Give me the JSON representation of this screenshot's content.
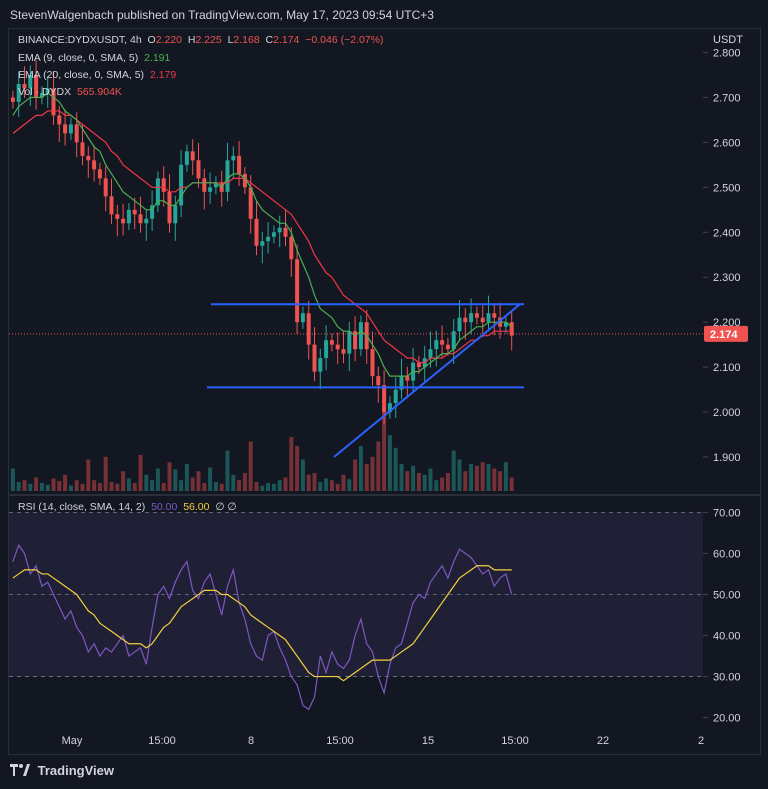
{
  "header": {
    "attribution": "StevenWalgenbach published on TradingView.com, May 17, 2023 09:54 UTC+3"
  },
  "legend": {
    "symbol": "BINANCE:DYDXUSDT, 4h",
    "o_label": "O",
    "o": "2.220",
    "h_label": "H",
    "h": "2.225",
    "l_label": "L",
    "l": "2.168",
    "c_label": "C",
    "c": "2.174",
    "change": "−0.046 (−2.07%)",
    "ema9_label": "EMA (9, close, 0, SMA, 5)",
    "ema9": "2.191",
    "ema20_label": "EMA (20, close, 0, SMA, 5)",
    "ema20": "2.179",
    "vol_label": "Vol · DYDX",
    "vol": "565.904K",
    "rsi_label": "RSI (14, close, SMA, 14, 2)",
    "rsi_a": "50.00",
    "rsi_b": "56.00",
    "rsi_c": "∅ ∅"
  },
  "colors": {
    "up": "#26a69a",
    "down": "#ef5350",
    "ema9": "#4caf50",
    "ema20": "#f23645",
    "rsi": "#7e57c2",
    "rsi_ma": "#f4d03f",
    "pattern": "#2962ff"
  },
  "footer": {
    "brand": "TradingView"
  },
  "chart_data": [
    {
      "type": "candlestick",
      "y_axis_label": "USDT",
      "yticks": [
        "2.800",
        "2.700",
        "2.600",
        "2.500",
        "2.400",
        "2.300",
        "2.200",
        "2.100",
        "2.000",
        "1.900"
      ],
      "ylim": [
        1.82,
        2.85
      ],
      "xticks": [
        "May",
        "15:00",
        "8",
        "15:00",
        "15",
        "15:00",
        "22",
        "2"
      ],
      "last_price": "2.174",
      "closes": [
        2.69,
        2.73,
        2.72,
        2.75,
        2.7,
        2.71,
        2.72,
        2.66,
        2.64,
        2.62,
        2.64,
        2.6,
        2.57,
        2.56,
        2.54,
        2.52,
        2.48,
        2.44,
        2.43,
        2.42,
        2.45,
        2.44,
        2.42,
        2.43,
        2.46,
        2.52,
        2.49,
        2.42,
        2.46,
        2.55,
        2.58,
        2.56,
        2.52,
        2.49,
        2.5,
        2.51,
        2.49,
        2.56,
        2.57,
        2.53,
        2.5,
        2.43,
        2.37,
        2.38,
        2.39,
        2.4,
        2.41,
        2.39,
        2.34,
        2.2,
        2.22,
        2.15,
        2.09,
        2.12,
        2.16,
        2.15,
        2.14,
        2.13,
        2.18,
        2.14,
        2.2,
        2.14,
        2.08,
        2.06,
        2.0,
        2.02,
        2.05,
        2.08,
        2.07,
        2.11,
        2.1,
        2.12,
        2.14,
        2.16,
        2.15,
        2.14,
        2.18,
        2.21,
        2.2,
        2.22,
        2.21,
        2.2,
        2.22,
        2.21,
        2.19,
        2.2,
        2.17
      ],
      "ema9": [
        2.66,
        2.68,
        2.69,
        2.7,
        2.7,
        2.7,
        2.71,
        2.7,
        2.69,
        2.67,
        2.66,
        2.65,
        2.63,
        2.61,
        2.59,
        2.58,
        2.55,
        2.53,
        2.51,
        2.49,
        2.48,
        2.47,
        2.46,
        2.45,
        2.45,
        2.47,
        2.47,
        2.46,
        2.46,
        2.48,
        2.5,
        2.51,
        2.51,
        2.51,
        2.51,
        2.51,
        2.5,
        2.52,
        2.53,
        2.53,
        2.52,
        2.5,
        2.47,
        2.45,
        2.44,
        2.43,
        2.42,
        2.42,
        2.4,
        2.36,
        2.33,
        2.3,
        2.26,
        2.23,
        2.22,
        2.21,
        2.19,
        2.18,
        2.18,
        2.17,
        2.18,
        2.17,
        2.15,
        2.13,
        2.1,
        2.08,
        2.08,
        2.08,
        2.08,
        2.09,
        2.09,
        2.1,
        2.11,
        2.12,
        2.13,
        2.13,
        2.14,
        2.16,
        2.17,
        2.18,
        2.19,
        2.19,
        2.2,
        2.2,
        2.2,
        2.2,
        2.19
      ],
      "ema20": [
        2.62,
        2.63,
        2.64,
        2.65,
        2.66,
        2.66,
        2.67,
        2.67,
        2.67,
        2.66,
        2.66,
        2.65,
        2.64,
        2.63,
        2.62,
        2.61,
        2.6,
        2.58,
        2.57,
        2.55,
        2.54,
        2.53,
        2.52,
        2.51,
        2.5,
        2.5,
        2.5,
        2.49,
        2.49,
        2.5,
        2.5,
        2.51,
        2.51,
        2.51,
        2.51,
        2.51,
        2.51,
        2.51,
        2.52,
        2.52,
        2.52,
        2.51,
        2.5,
        2.49,
        2.48,
        2.47,
        2.46,
        2.45,
        2.44,
        2.42,
        2.4,
        2.38,
        2.35,
        2.33,
        2.31,
        2.3,
        2.28,
        2.26,
        2.25,
        2.24,
        2.23,
        2.22,
        2.2,
        2.18,
        2.16,
        2.15,
        2.14,
        2.13,
        2.12,
        2.12,
        2.11,
        2.11,
        2.12,
        2.12,
        2.12,
        2.13,
        2.13,
        2.14,
        2.15,
        2.16,
        2.16,
        2.17,
        2.17,
        2.18,
        2.18,
        2.18,
        2.18
      ],
      "volume": [
        0.25,
        0.1,
        0.12,
        0.08,
        0.15,
        0.09,
        0.07,
        0.14,
        0.11,
        0.18,
        0.06,
        0.12,
        0.08,
        0.35,
        0.12,
        0.09,
        0.38,
        0.1,
        0.08,
        0.22,
        0.14,
        0.09,
        0.4,
        0.18,
        0.12,
        0.25,
        0.09,
        0.32,
        0.24,
        0.12,
        0.3,
        0.15,
        0.22,
        0.09,
        0.26,
        0.1,
        0.08,
        0.45,
        0.18,
        0.12,
        0.2,
        0.55,
        0.1,
        0.06,
        0.09,
        0.08,
        0.12,
        0.15,
        0.6,
        0.5,
        0.35,
        0.18,
        0.2,
        0.1,
        0.14,
        0.12,
        0.08,
        0.18,
        0.13,
        0.35,
        0.5,
        0.3,
        0.38,
        0.55,
        0.95,
        0.62,
        0.48,
        0.3,
        0.22,
        0.28,
        0.2,
        0.18,
        0.25,
        0.12,
        0.15,
        0.2,
        0.45,
        0.35,
        0.22,
        0.3,
        0.28,
        0.32,
        0.3,
        0.25,
        0.22,
        0.32,
        0.15
      ],
      "annotations": [
        {
          "type": "horizontal",
          "price": 2.24
        },
        {
          "type": "horizontal",
          "price": 2.055
        },
        {
          "type": "trendline",
          "from_price": 1.9,
          "to_price": 2.24
        }
      ]
    },
    {
      "type": "line",
      "title": "RSI (14, close, SMA, 14, 2)",
      "yticks": [
        "70.00",
        "60.00",
        "50.00",
        "40.00",
        "30.00",
        "20.00"
      ],
      "ylim": [
        16.5,
        73.5
      ],
      "band": [
        30,
        70
      ],
      "rsi": [
        58,
        62,
        60,
        55,
        57,
        52,
        53,
        50,
        47,
        44,
        46,
        42,
        40,
        36,
        38,
        35,
        37,
        36,
        38,
        40,
        35,
        36,
        37,
        33,
        42,
        50,
        52,
        49,
        53,
        56,
        58,
        51,
        49,
        53,
        55,
        50,
        45,
        52,
        56,
        48,
        44,
        38,
        35,
        34,
        40,
        41,
        37,
        34,
        30,
        28,
        23,
        22,
        25,
        35,
        31,
        36,
        33,
        32,
        34,
        40,
        44,
        38,
        36,
        30,
        26,
        33,
        37,
        38,
        43,
        48,
        50,
        49,
        53,
        55,
        57,
        54,
        58,
        61,
        60,
        59,
        57,
        55,
        56,
        52,
        54,
        55,
        50
      ],
      "rsi_ma": [
        54,
        55,
        56,
        56,
        56,
        55,
        55,
        54,
        53,
        52,
        51,
        50,
        48,
        46,
        45,
        43,
        42,
        41,
        40,
        39,
        38,
        38,
        38,
        37,
        38,
        40,
        42,
        43,
        45,
        47,
        48,
        49,
        50,
        51,
        51,
        51,
        50,
        50,
        49,
        48,
        47,
        45,
        44,
        43,
        42,
        41,
        40,
        39,
        37,
        35,
        33,
        31,
        30,
        30,
        30,
        30,
        30,
        29,
        30,
        31,
        32,
        33,
        34,
        34,
        34,
        34,
        35,
        36,
        37,
        38,
        40,
        42,
        44,
        46,
        48,
        50,
        52,
        54,
        55,
        56,
        57,
        57,
        57,
        56,
        56,
        56,
        56
      ]
    }
  ]
}
